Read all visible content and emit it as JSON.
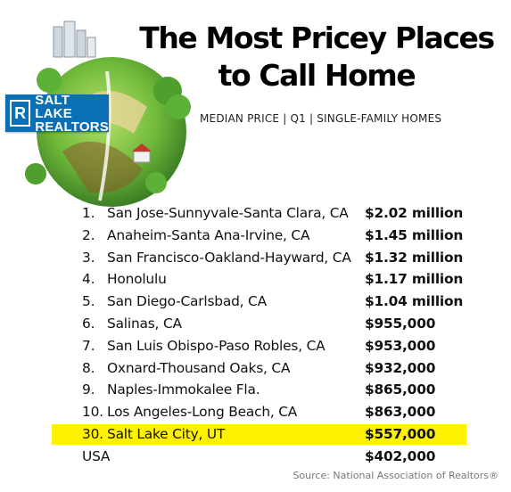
{
  "header": {
    "title_line1": "The Most Pricey Places",
    "title_line2": "to Call Home",
    "subtitle": "MEDIAN PRICE | Q1 | SINGLE-FAMILY HOMES"
  },
  "logo": {
    "mark": "R",
    "line1": "SALT LAKE",
    "line2": "REALTORS"
  },
  "rankings": [
    {
      "rank": "1.",
      "place": "San Jose-Sunnyvale-Santa Clara, CA",
      "price": "$2.02 million"
    },
    {
      "rank": "2.",
      "place": "Anaheim-Santa Ana-Irvine, CA",
      "price": "$1.45 million"
    },
    {
      "rank": "3.",
      "place": "San Francisco-Oakland-Hayward, CA",
      "price": "$1.32 million"
    },
    {
      "rank": "4.",
      "place": "Honolulu",
      "price": "$1.17 million"
    },
    {
      "rank": "5.",
      "place": "San Diego-Carlsbad, CA",
      "price": "$1.04 million"
    },
    {
      "rank": "6.",
      "place": "Salinas, CA",
      "price": "$955,000"
    },
    {
      "rank": "7.",
      "place": "San Luis Obispo-Paso Robles, CA",
      "price": "$953,000"
    },
    {
      "rank": "8.",
      "place": "Oxnard-Thousand Oaks, CA",
      "price": "$932,000"
    },
    {
      "rank": "9.",
      "place": "Naples-Immokalee Fla.",
      "price": "$865,000"
    },
    {
      "rank": "10.",
      "place": "Los Angeles-Long Beach, CA",
      "price": "$863,000"
    },
    {
      "rank": "30.",
      "place": "Salt Lake City, UT",
      "price": "$557,000"
    },
    {
      "rank": "",
      "place": "USA",
      "price": "$402,000"
    }
  ],
  "highlight_color": "#fff200",
  "source": "Source: National Association of Realtors®"
}
